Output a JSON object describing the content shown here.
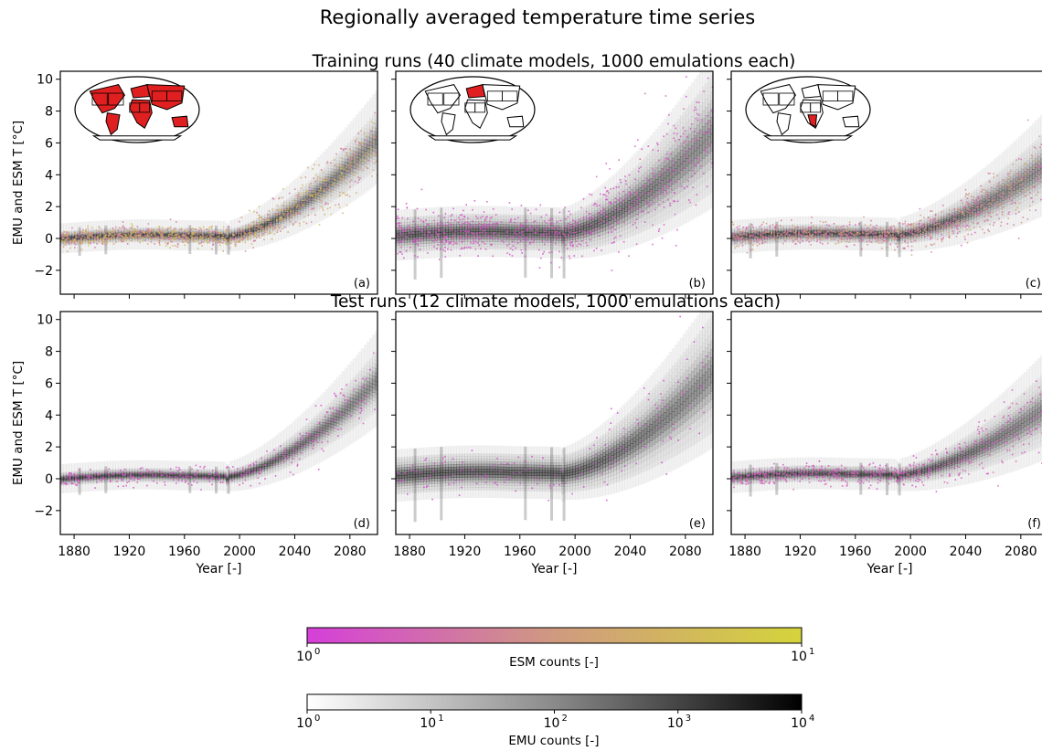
{
  "figure": {
    "title": "Regionally averaged temperature time series",
    "row_titles": [
      "Training runs (40 climate models, 1000 emulations each)",
      "Test runs (12 climate models, 1000 emulations each)"
    ]
  },
  "colors": {
    "esm_low": "#d53fd9",
    "esm_mid": "#cf9a80",
    "esm_high": "#d4d43b",
    "emu_low": "#ffffff",
    "emu_high": "#000000",
    "land_highlight": "#e02020"
  },
  "chart_data": {
    "type": "heatmap",
    "description_series": "2D histogram of regionally averaged temperature time series; ESM counts overlaid on EMU counts",
    "xlabel": "Year [-]",
    "ylabel": "EMU and ESM T [°C]",
    "xlim": [
      1870,
      2100
    ],
    "ylim": [
      -3.5,
      10.5
    ],
    "xticks": [
      1880,
      1920,
      1960,
      2000,
      2040,
      2080
    ],
    "yticks": [
      -2,
      0,
      2,
      4,
      6,
      8,
      10
    ],
    "panels": [
      {
        "label": "(a)",
        "row": 0,
        "col": 0,
        "baseline": 0.0,
        "spread": 0.45,
        "center_2100": 6.4,
        "upper_2100": 8.2,
        "lower_2100": 4.5,
        "esm_density": 0.85,
        "esm_hue": 0.55,
        "map_regions": "most-land"
      },
      {
        "label": "(b)",
        "row": 0,
        "col": 1,
        "baseline": 0.2,
        "spread": 1.1,
        "center_2100": 7.0,
        "upper_2100": 10.5,
        "lower_2100": 3.0,
        "esm_density": 0.6,
        "esm_hue": 0.12,
        "map_regions": "northern-europe"
      },
      {
        "label": "(c)",
        "row": 0,
        "col": 2,
        "baseline": 0.1,
        "spread": 0.55,
        "center_2100": 4.5,
        "upper_2100": 7.0,
        "lower_2100": 2.6,
        "esm_density": 0.75,
        "esm_hue": 0.4,
        "map_regions": "southern-africa"
      },
      {
        "label": "(d)",
        "row": 1,
        "col": 0,
        "baseline": 0.0,
        "spread": 0.42,
        "center_2100": 6.4,
        "upper_2100": 8.2,
        "lower_2100": 4.4,
        "esm_density": 0.25,
        "esm_hue": 0.1,
        "map_regions": ""
      },
      {
        "label": "(e)",
        "row": 1,
        "col": 1,
        "baseline": 0.2,
        "spread": 1.15,
        "center_2100": 7.0,
        "upper_2100": 10.5,
        "lower_2100": 3.0,
        "esm_density": 0.12,
        "esm_hue": 0.05,
        "map_regions": ""
      },
      {
        "label": "(f)",
        "row": 1,
        "col": 2,
        "baseline": 0.1,
        "spread": 0.5,
        "center_2100": 4.6,
        "upper_2100": 7.0,
        "lower_2100": 2.3,
        "esm_density": 0.4,
        "esm_hue": 0.15,
        "map_regions": ""
      }
    ],
    "colorbars": [
      {
        "label": "ESM counts [-]",
        "ticks": [
          "10",
          "10"
        ],
        "exponents": [
          "0",
          "1"
        ],
        "cmap": "magenta-to-yellow"
      },
      {
        "label": "EMU counts [-]",
        "ticks": [
          "10",
          "10",
          "10",
          "10",
          "10"
        ],
        "exponents": [
          "0",
          "1",
          "2",
          "3",
          "4"
        ],
        "cmap": "white-to-black"
      }
    ]
  }
}
